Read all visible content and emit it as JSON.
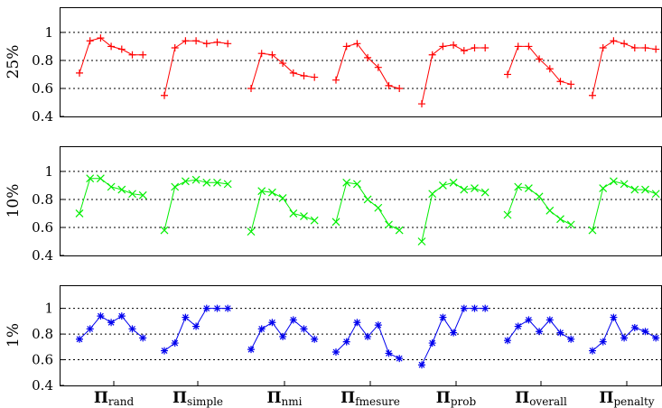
{
  "chart_data": {
    "type": "line",
    "categories": [
      {
        "main": "Π",
        "sub": "rand"
      },
      {
        "main": "Π",
        "sub": "simple"
      },
      {
        "main": "Π",
        "sub": "nmi"
      },
      {
        "main": "Π",
        "sub": "fmesure"
      },
      {
        "main": "Π",
        "sub": "prob"
      },
      {
        "main": "Π",
        "sub": "overall"
      },
      {
        "main": "Π",
        "sub": "penalty"
      }
    ],
    "ylim": [
      0.4,
      1.18
    ],
    "yticks": [
      "0.4",
      "0.6",
      "0.8",
      "1"
    ],
    "grid": "horizontal dotted at 0.6, 0.8, 1",
    "panels": [
      {
        "ylabel": "25%",
        "color": "#ff0000",
        "marker": "plus",
        "groups": [
          [
            0.71,
            0.94,
            0.96,
            0.9,
            0.88,
            0.84,
            0.84
          ],
          [
            0.55,
            0.89,
            0.94,
            0.94,
            0.92,
            0.93,
            0.92
          ],
          [
            0.6,
            0.85,
            0.84,
            0.78,
            0.71,
            0.69,
            0.68
          ],
          [
            0.66,
            0.9,
            0.92,
            0.82,
            0.75,
            0.62,
            0.6
          ],
          [
            0.49,
            0.84,
            0.9,
            0.91,
            0.87,
            0.89,
            0.89
          ],
          [
            0.7,
            0.9,
            0.9,
            0.81,
            0.74,
            0.65,
            0.63
          ],
          [
            0.55,
            0.89,
            0.94,
            0.92,
            0.89,
            0.89,
            0.88
          ]
        ]
      },
      {
        "ylabel": "10%",
        "color": "#00ee00",
        "marker": "cross",
        "groups": [
          [
            0.7,
            0.95,
            0.95,
            0.89,
            0.87,
            0.84,
            0.83
          ],
          [
            0.58,
            0.89,
            0.93,
            0.94,
            0.92,
            0.92,
            0.91
          ],
          [
            0.57,
            0.86,
            0.85,
            0.81,
            0.7,
            0.68,
            0.65
          ],
          [
            0.64,
            0.92,
            0.91,
            0.8,
            0.74,
            0.62,
            0.58
          ],
          [
            0.5,
            0.84,
            0.9,
            0.92,
            0.87,
            0.88,
            0.85
          ],
          [
            0.69,
            0.89,
            0.88,
            0.82,
            0.72,
            0.66,
            0.62
          ],
          [
            0.58,
            0.88,
            0.93,
            0.91,
            0.87,
            0.87,
            0.84
          ]
        ]
      },
      {
        "ylabel": "1%",
        "color": "#0000ee",
        "marker": "star",
        "groups": [
          [
            0.76,
            0.84,
            0.94,
            0.89,
            0.94,
            0.84,
            0.77
          ],
          [
            0.67,
            0.73,
            0.93,
            0.86,
            1.0,
            1.0,
            1.0
          ],
          [
            0.68,
            0.84,
            0.89,
            0.78,
            0.91,
            0.84,
            0.76
          ],
          [
            0.66,
            0.74,
            0.89,
            0.78,
            0.87,
            0.65,
            0.61
          ],
          [
            0.56,
            0.73,
            0.93,
            0.81,
            1.0,
            1.0,
            1.0
          ],
          [
            0.75,
            0.86,
            0.91,
            0.82,
            0.91,
            0.81,
            0.76
          ],
          [
            0.67,
            0.74,
            0.93,
            0.77,
            0.85,
            0.82,
            0.77
          ]
        ]
      }
    ]
  }
}
